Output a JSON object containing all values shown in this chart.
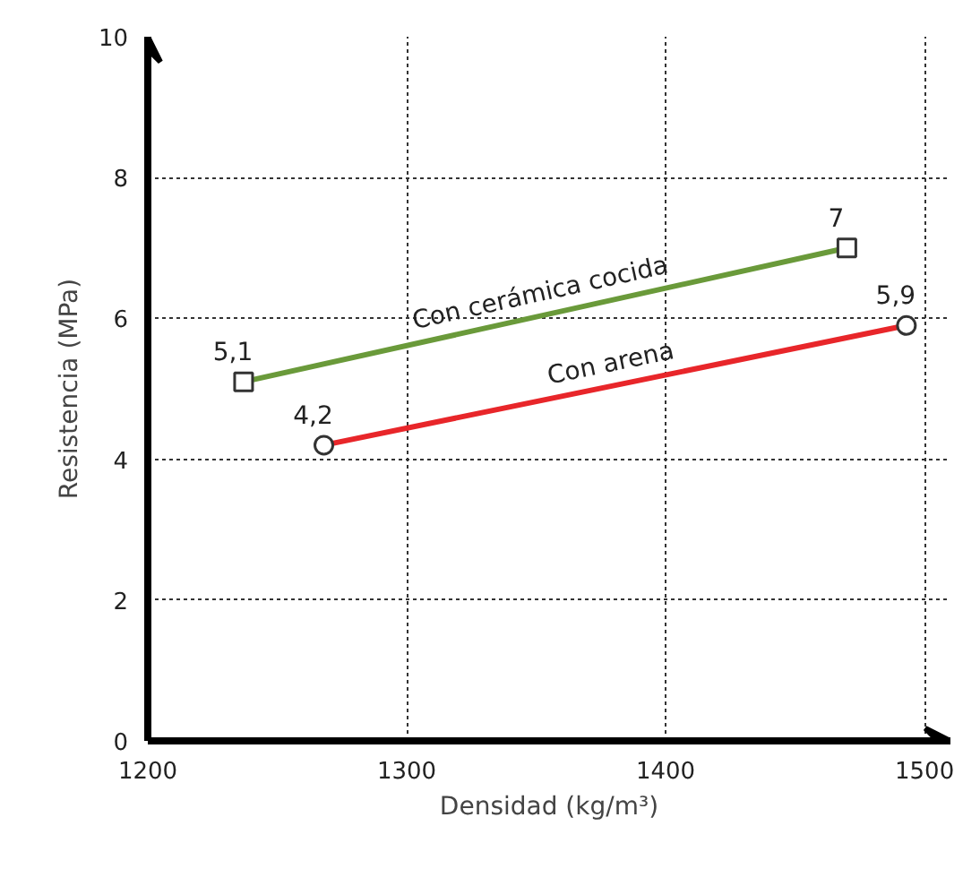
{
  "chart_data": {
    "type": "line",
    "xlabel": "Densidad (kg/m³)",
    "ylabel": "Resistencia (MPa)",
    "xlim": [
      1200,
      1510
    ],
    "xticks": [
      1200,
      1300,
      1400,
      1500
    ],
    "ylim": [
      0,
      10
    ],
    "yticks": [
      0,
      2,
      4,
      6,
      8,
      10
    ],
    "grid": true,
    "line_style": "solid",
    "series": [
      {
        "name": "Con cerámica cocida",
        "color": "#6a9a3a",
        "x": [
          1237,
          1470
        ],
        "values": [
          5.1,
          7
        ],
        "marker": "square",
        "value_labels": [
          "5,1",
          "7"
        ]
      },
      {
        "name": "Con arena",
        "color": "#e8262a",
        "x": [
          1268,
          1493
        ],
        "values": [
          4.2,
          5.9
        ],
        "marker": "circle",
        "value_labels": [
          "4,2",
          "5,9"
        ]
      }
    ]
  }
}
